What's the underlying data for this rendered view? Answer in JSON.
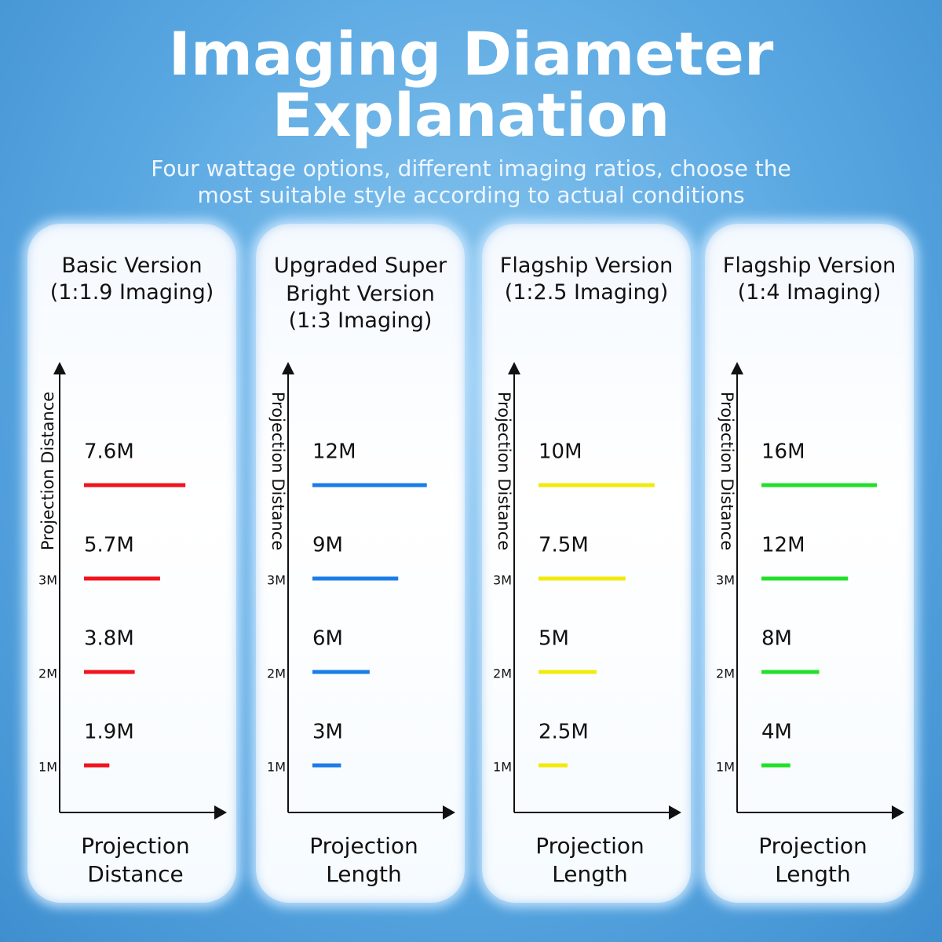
{
  "header": {
    "title": "Imaging Diameter Explanation",
    "subtitle": "Four wattage options, different imaging ratios, choose the most suitable style according to actual conditions"
  },
  "chart_data": [
    {
      "type": "bar",
      "orientation": "horizontal",
      "title": "Basic Version",
      "subtitle": "(1:1.9 Imaging)",
      "y_label": "Projection Distance",
      "x_label": "Projection Distance",
      "categories": [
        "1M",
        "2M",
        "3M",
        null
      ],
      "values": [
        1.9,
        3.8,
        5.7,
        7.6
      ],
      "value_labels": [
        "1.9M",
        "3.8M",
        "5.7M",
        "7.6M"
      ],
      "color": "#f0141e",
      "xlim": [
        0,
        10
      ]
    },
    {
      "type": "bar",
      "orientation": "horizontal",
      "title": "Upgraded Super Bright Version",
      "subtitle": "(1:3 Imaging)",
      "y_label": "Projection Distance",
      "x_label": "Projection Length",
      "categories": [
        "1M",
        "2M",
        "3M",
        null
      ],
      "values": [
        3,
        6,
        9,
        12
      ],
      "value_labels": [
        "3M",
        "6M",
        "9M",
        "12M"
      ],
      "color": "#1a7de8",
      "xlim": [
        0,
        14
      ]
    },
    {
      "type": "bar",
      "orientation": "horizontal",
      "title": "Flagship Version",
      "subtitle": "(1:2.5 Imaging)",
      "y_label": "Projection Distance",
      "x_label": "Projection Length",
      "categories": [
        "1M",
        "2M",
        "3M",
        null
      ],
      "values": [
        2.5,
        5,
        7.5,
        10
      ],
      "value_labels": [
        "2.5M",
        "5M",
        "7.5M",
        "10M"
      ],
      "color": "#f2ea0c",
      "xlim": [
        0,
        11.5
      ]
    },
    {
      "type": "bar",
      "orientation": "horizontal",
      "title": "Flagship Version",
      "subtitle": "(1:4 Imaging)",
      "y_label": "Projection Distance",
      "x_label": "Projection Length",
      "categories": [
        "1M",
        "2M",
        "3M",
        null
      ],
      "values": [
        4,
        8,
        12,
        16
      ],
      "value_labels": [
        "4M",
        "8M",
        "12M",
        "16M"
      ],
      "color": "#22e02a",
      "xlim": [
        0,
        18.5
      ]
    }
  ]
}
